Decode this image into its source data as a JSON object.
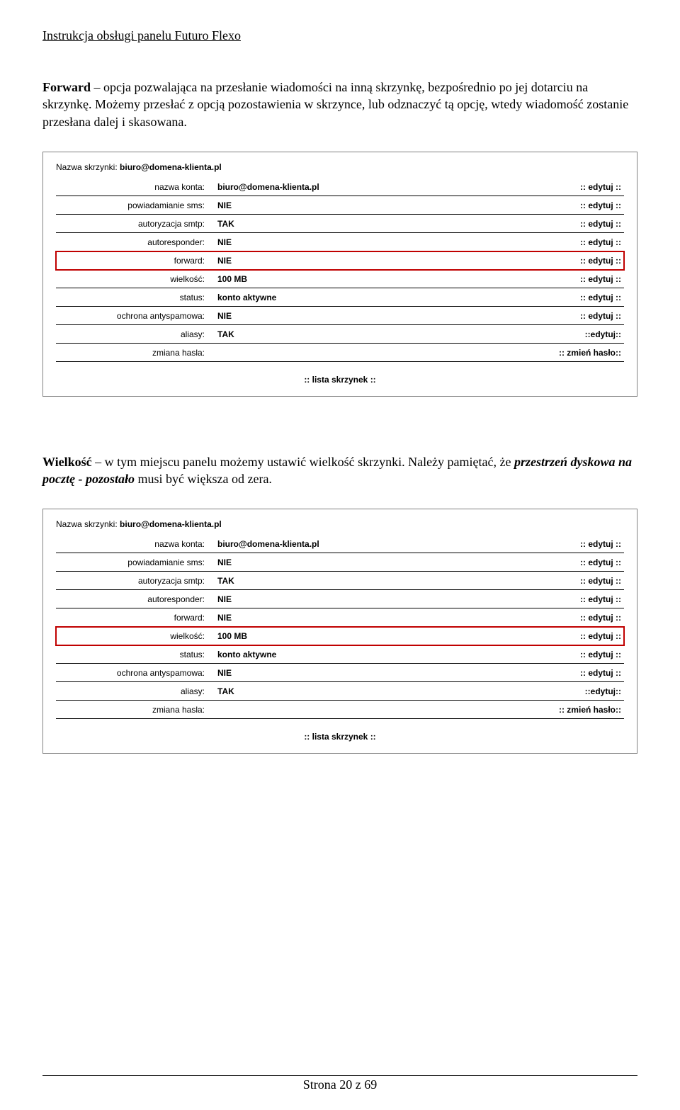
{
  "header": "Instrukcja obsługi panelu Futuro Flexo",
  "para1": {
    "bold": "Forward",
    "rest": " – opcja pozwalająca na przesłanie wiadomości na inną skrzynkę, bezpośrednio po jej dotarciu na skrzynkę. Możemy przesłać z opcją pozostawienia w skrzynce, lub odznaczyć tą opcję, wtedy wiadomość zostanie przesłana dalej i skasowana."
  },
  "panel1": {
    "title_label": "Nazwa skrzynki: ",
    "title_value": "biuro@domena-klienta.pl",
    "rows": [
      {
        "label": "nazwa konta:",
        "value": "biuro@domena-klienta.pl",
        "action": ":: edytuj ::",
        "hl": false
      },
      {
        "label": "powiadamianie sms:",
        "value": "NIE",
        "action": ":: edytuj ::",
        "hl": false
      },
      {
        "label": "autoryzacja smtp:",
        "value": "TAK",
        "action": ":: edytuj ::",
        "hl": false
      },
      {
        "label": "autoresponder:",
        "value": "NIE",
        "action": ":: edytuj ::",
        "hl": false
      },
      {
        "label": "forward:",
        "value": "NIE",
        "action": ":: edytuj ::",
        "hl": true
      },
      {
        "label": "wielkość:",
        "value": "100 MB",
        "action": ":: edytuj ::",
        "hl": false
      },
      {
        "label": "status:",
        "value": "konto aktywne",
        "action": ":: edytuj ::",
        "hl": false
      },
      {
        "label": "ochrona antyspamowa:",
        "value": "NIE",
        "action": ":: edytuj ::",
        "hl": false
      },
      {
        "label": "aliasy:",
        "value": "TAK",
        "action": "::edytuj::",
        "hl": false
      },
      {
        "label": "zmiana hasla:",
        "value": "",
        "action": ":: zmień hasło::",
        "hl": false
      }
    ],
    "footer": ":: lista skrzynek ::"
  },
  "para2": {
    "bold": "Wielkość",
    "rest1": " – w tym miejscu panelu możemy ustawić wielkość skrzynki. Należy pamiętać, że ",
    "italic": "przestrzeń dyskowa na pocztę  - pozostało",
    "rest2": " musi być większa od zera."
  },
  "panel2": {
    "title_label": "Nazwa skrzynki: ",
    "title_value": "biuro@domena-klienta.pl",
    "rows": [
      {
        "label": "nazwa konta:",
        "value": "biuro@domena-klienta.pl",
        "action": ":: edytuj ::",
        "hl": false
      },
      {
        "label": "powiadamianie sms:",
        "value": "NIE",
        "action": ":: edytuj ::",
        "hl": false
      },
      {
        "label": "autoryzacja smtp:",
        "value": "TAK",
        "action": ":: edytuj ::",
        "hl": false
      },
      {
        "label": "autoresponder:",
        "value": "NIE",
        "action": ":: edytuj ::",
        "hl": false
      },
      {
        "label": "forward:",
        "value": "NIE",
        "action": ":: edytuj ::",
        "hl": false
      },
      {
        "label": "wielkość:",
        "value": "100 MB",
        "action": ":: edytuj ::",
        "hl": true
      },
      {
        "label": "status:",
        "value": "konto aktywne",
        "action": ":: edytuj ::",
        "hl": false
      },
      {
        "label": "ochrona antyspamowa:",
        "value": "NIE",
        "action": ":: edytuj ::",
        "hl": false
      },
      {
        "label": "aliasy:",
        "value": "TAK",
        "action": "::edytuj::",
        "hl": false
      },
      {
        "label": "zmiana hasla:",
        "value": "",
        "action": ":: zmień hasło::",
        "hl": false
      }
    ],
    "footer": ":: lista skrzynek ::"
  },
  "page_footer": "Strona 20 z 69"
}
